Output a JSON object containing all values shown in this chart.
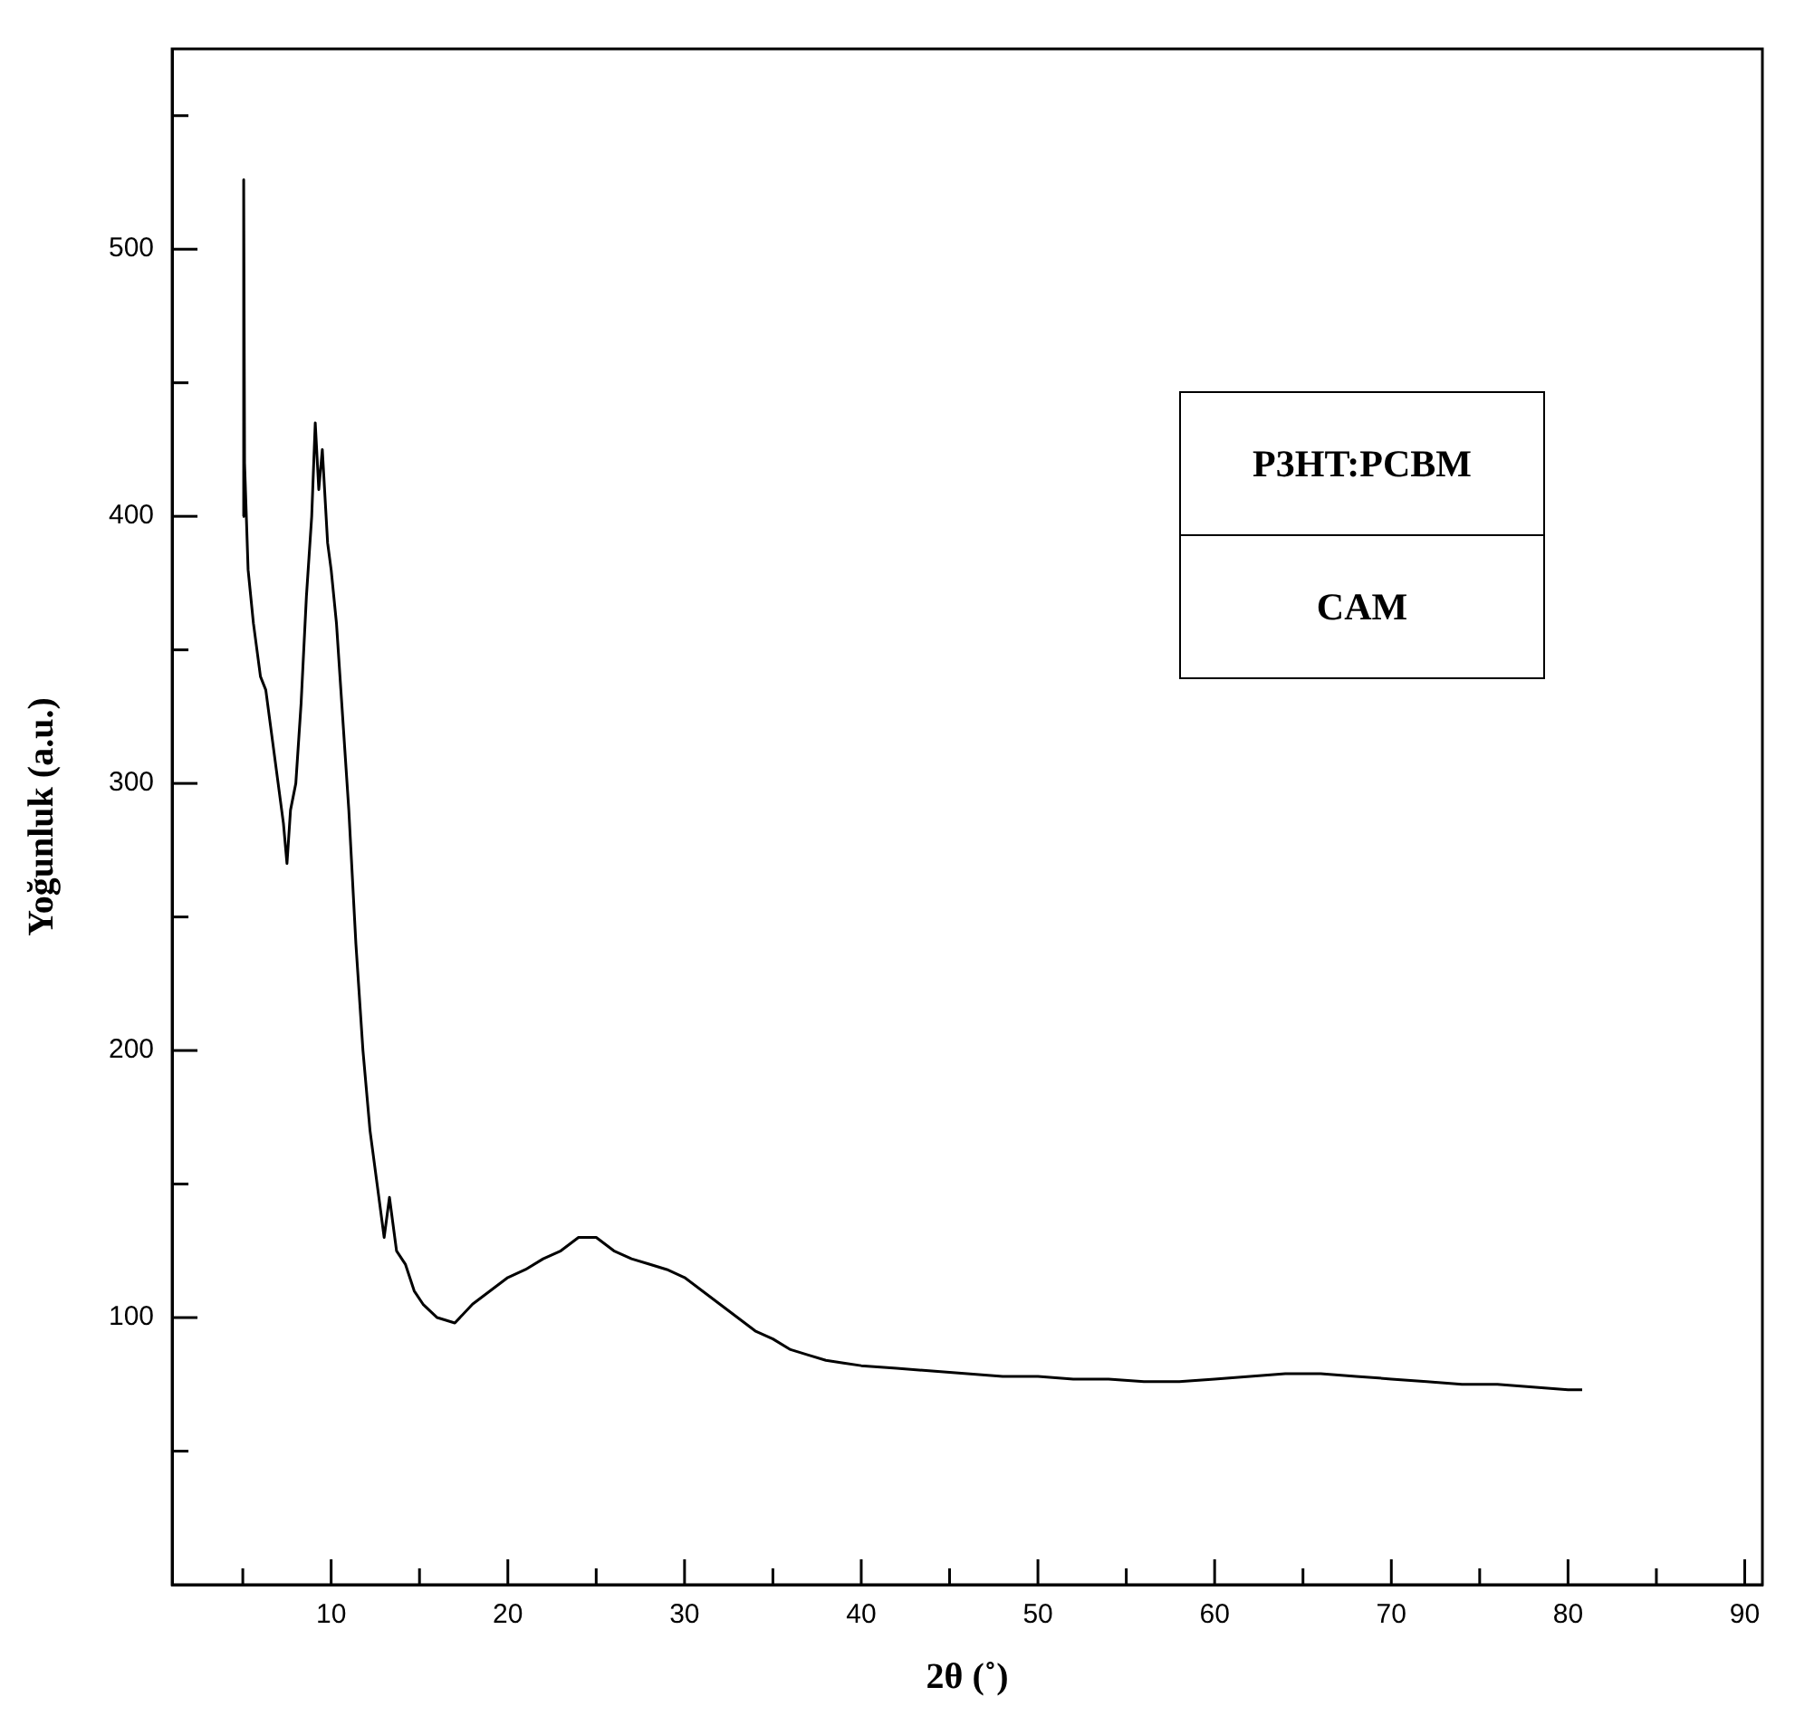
{
  "chart_data": {
    "type": "line",
    "xlabel": "2θ (˚)",
    "ylabel": "Yoğunluk (a.u.)",
    "annotations": [
      "P3HT:PCBM",
      "CAM"
    ],
    "xlim": [
      1,
      91
    ],
    "ylim": [
      0,
      575
    ],
    "xticks": [
      {
        "value": 5,
        "label": null
      },
      10,
      {
        "value": 15,
        "label": null
      },
      20,
      {
        "value": 25,
        "label": null
      },
      30,
      {
        "value": 35,
        "label": null
      },
      40,
      {
        "value": 45,
        "label": null
      },
      50,
      {
        "value": 55,
        "label": null
      },
      60,
      {
        "value": 65,
        "label": null
      },
      70,
      {
        "value": 75,
        "label": null
      },
      80,
      {
        "value": 85,
        "label": null
      },
      90
    ],
    "yticks": [
      {
        "value": 50,
        "label": null
      },
      100,
      {
        "value": 150,
        "label": null
      },
      200,
      {
        "value": 250,
        "label": null
      },
      300,
      {
        "value": 350,
        "label": null
      },
      400,
      {
        "value": 450,
        "label": null
      },
      500,
      {
        "value": 550,
        "label": null
      }
    ],
    "grid": false,
    "legend": false,
    "series": [
      {
        "color": "#000000",
        "x": [
          5.0,
          5.05,
          5.1,
          5.3,
          5.6,
          6.0,
          6.3,
          6.6,
          7.0,
          7.3,
          7.5,
          7.7,
          8.0,
          8.3,
          8.6,
          8.9,
          9.1,
          9.3,
          9.5,
          9.8,
          10.0,
          10.3,
          10.6,
          11.0,
          11.4,
          11.8,
          12.2,
          12.6,
          13.0,
          13.3,
          13.7,
          14.2,
          14.7,
          15.2,
          16,
          17,
          18,
          19,
          20,
          21,
          22,
          23,
          24,
          25,
          26,
          27,
          28,
          29,
          30,
          31,
          32,
          33,
          34,
          35,
          36,
          37,
          38,
          39,
          40,
          42,
          44,
          46,
          48,
          50,
          52,
          54,
          56,
          58,
          60,
          62,
          64,
          66,
          68,
          70,
          72,
          74,
          76,
          78,
          80,
          80.8
        ],
        "values": [
          400,
          526,
          420,
          380,
          360,
          340,
          335,
          320,
          300,
          285,
          270,
          290,
          300,
          330,
          370,
          400,
          435,
          410,
          425,
          390,
          380,
          360,
          330,
          290,
          240,
          200,
          170,
          150,
          130,
          145,
          125,
          120,
          110,
          105,
          100,
          98,
          105,
          110,
          115,
          118,
          122,
          125,
          130,
          130,
          125,
          122,
          120,
          118,
          115,
          110,
          105,
          100,
          95,
          92,
          88,
          86,
          84,
          83,
          82,
          81,
          80,
          79,
          78,
          78,
          77,
          77,
          76,
          76,
          77,
          78,
          79,
          79,
          78,
          77,
          76,
          75,
          75,
          74,
          73,
          73
        ]
      }
    ]
  }
}
